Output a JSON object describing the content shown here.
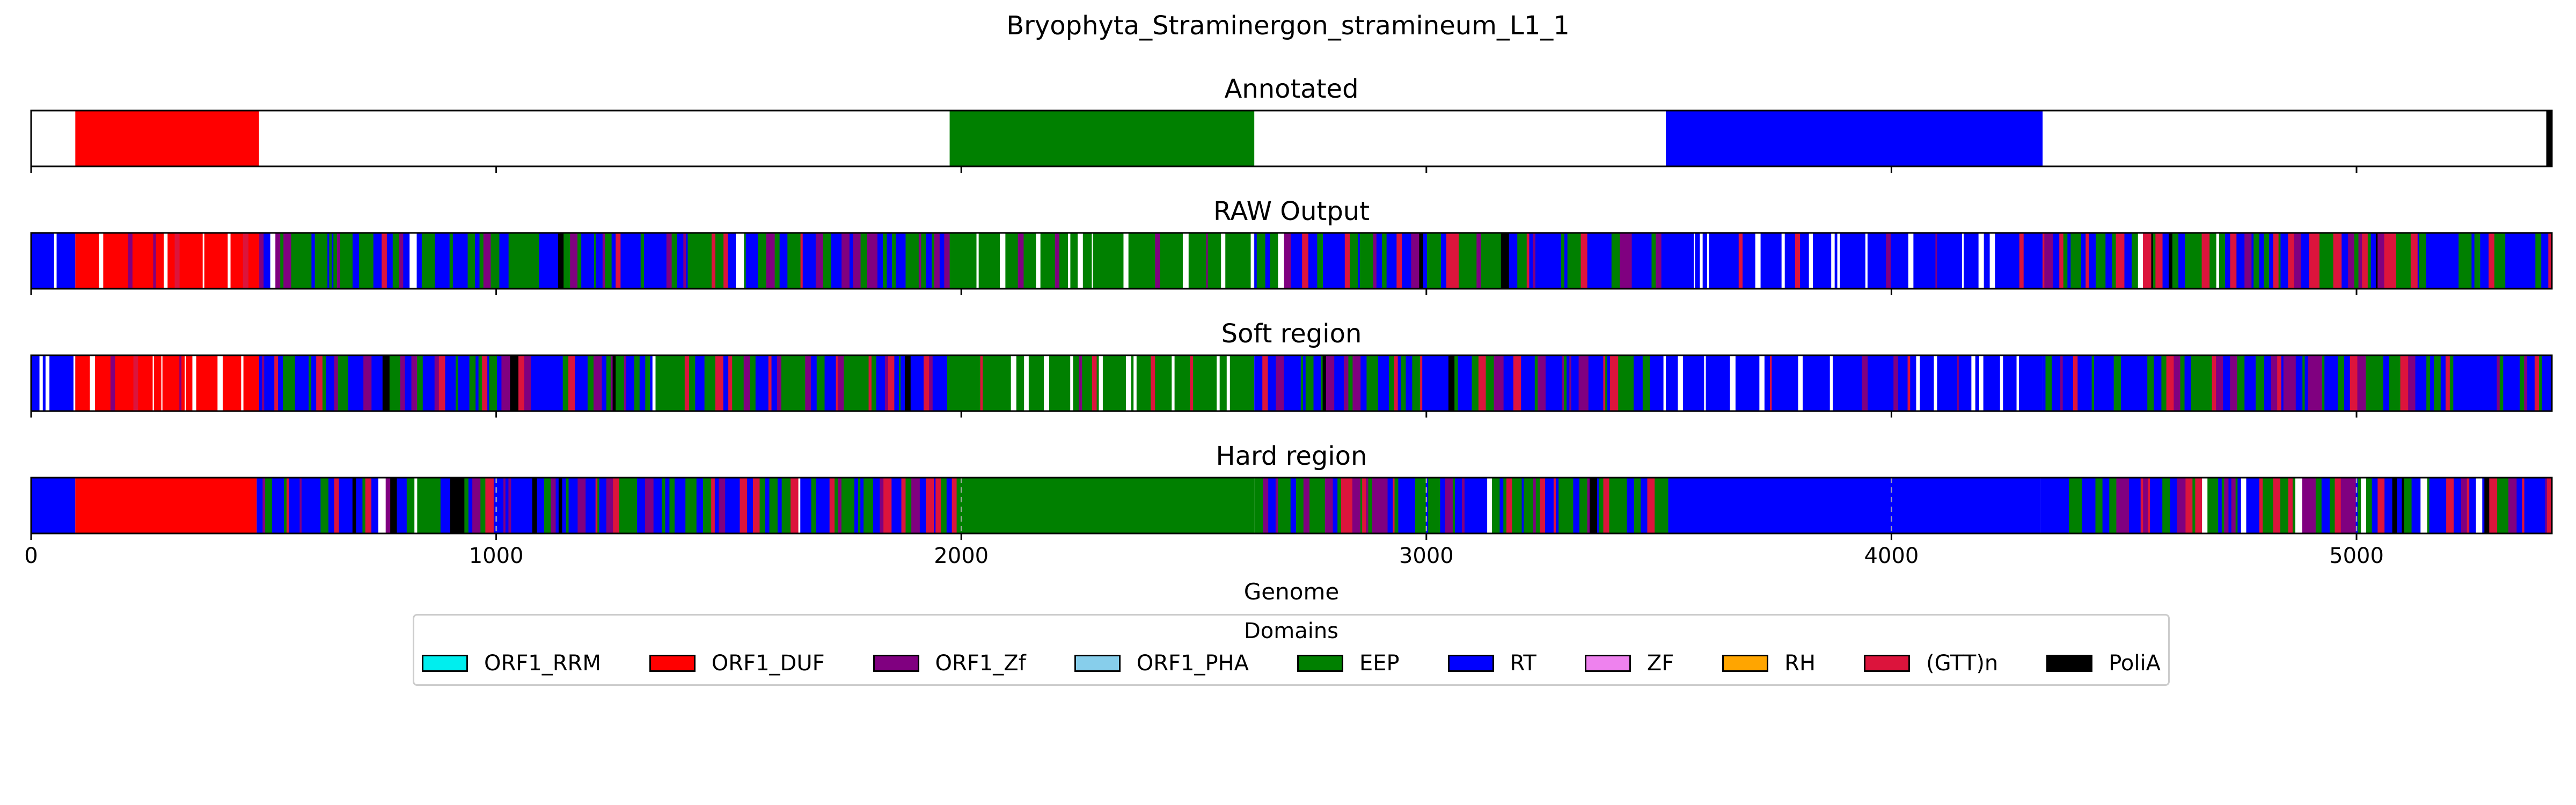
{
  "chart_data": {
    "type": "track",
    "title": "Bryophyta_Straminergon_stramineum_L1_1",
    "xlabel": "Genome",
    "xlim": [
      0,
      5420
    ],
    "xticks": [
      0,
      1000,
      2000,
      3000,
      4000,
      5000
    ],
    "xtick_labels": [
      "0",
      "1000",
      "2000",
      "3000",
      "4000",
      "5000"
    ],
    "legend": {
      "title": "Domains",
      "placement": "lower-center",
      "entries": [
        {
          "name": "ORF1_RRM",
          "color": "#00eeee"
        },
        {
          "name": "ORF1_DUF",
          "color": "#ff0000"
        },
        {
          "name": "ORF1_Zf",
          "color": "#800080"
        },
        {
          "name": "ORF1_PHA",
          "color": "#87ceeb"
        },
        {
          "name": "EEP",
          "color": "#008000"
        },
        {
          "name": "RT",
          "color": "#0000ff"
        },
        {
          "name": "ZF",
          "color": "#ee82ee"
        },
        {
          "name": "RH",
          "color": "#ffa500"
        },
        {
          "name": "(GTT)n",
          "color": "#dc143c"
        },
        {
          "name": "PoliA",
          "color": "#000000"
        }
      ]
    },
    "tracks": [
      {
        "name": "Annotated",
        "style": "segments",
        "segments": [
          {
            "domain": "ORF1_DUF",
            "start": 95,
            "end": 490
          },
          {
            "domain": "EEP",
            "start": 1975,
            "end": 2630
          },
          {
            "domain": "RT",
            "start": 3515,
            "end": 4325
          },
          {
            "domain": "PoliA",
            "start": 5408,
            "end": 5420
          }
        ]
      },
      {
        "name": "RAW Output",
        "style": "noisy",
        "regions": [
          {
            "domain": "RT",
            "start": 0,
            "end": 95
          },
          {
            "domain": "ORF1_DUF",
            "start": 95,
            "end": 490
          },
          {
            "domain": "mixed",
            "start": 490,
            "end": 1975
          },
          {
            "domain": "EEP",
            "start": 1975,
            "end": 2630
          },
          {
            "domain": "mixed",
            "start": 2630,
            "end": 3515
          },
          {
            "domain": "RT",
            "start": 3515,
            "end": 4325
          },
          {
            "domain": "mixed",
            "start": 4325,
            "end": 5420
          }
        ]
      },
      {
        "name": "Soft region",
        "style": "noisy",
        "regions": [
          {
            "domain": "RT",
            "start": 0,
            "end": 95
          },
          {
            "domain": "ORF1_DUF",
            "start": 95,
            "end": 490
          },
          {
            "domain": "mixed",
            "start": 490,
            "end": 1975
          },
          {
            "domain": "EEP",
            "start": 1975,
            "end": 2630
          },
          {
            "domain": "mixed",
            "start": 2630,
            "end": 3515
          },
          {
            "domain": "RT",
            "start": 3515,
            "end": 4325
          },
          {
            "domain": "mixed",
            "start": 4325,
            "end": 5420
          }
        ]
      },
      {
        "name": "Hard region",
        "style": "solid",
        "grid": true,
        "regions": [
          {
            "domain": "RT",
            "start": 0,
            "end": 95
          },
          {
            "domain": "ORF1_DUF",
            "start": 95,
            "end": 485
          },
          {
            "domain": "mixed",
            "start": 485,
            "end": 1990
          },
          {
            "domain": "EEP",
            "start": 1990,
            "end": 2630
          },
          {
            "domain": "mixed",
            "start": 2630,
            "end": 3520
          },
          {
            "domain": "RT",
            "start": 3520,
            "end": 4320
          },
          {
            "domain": "mixed",
            "start": 4320,
            "end": 5420
          }
        ]
      }
    ]
  }
}
